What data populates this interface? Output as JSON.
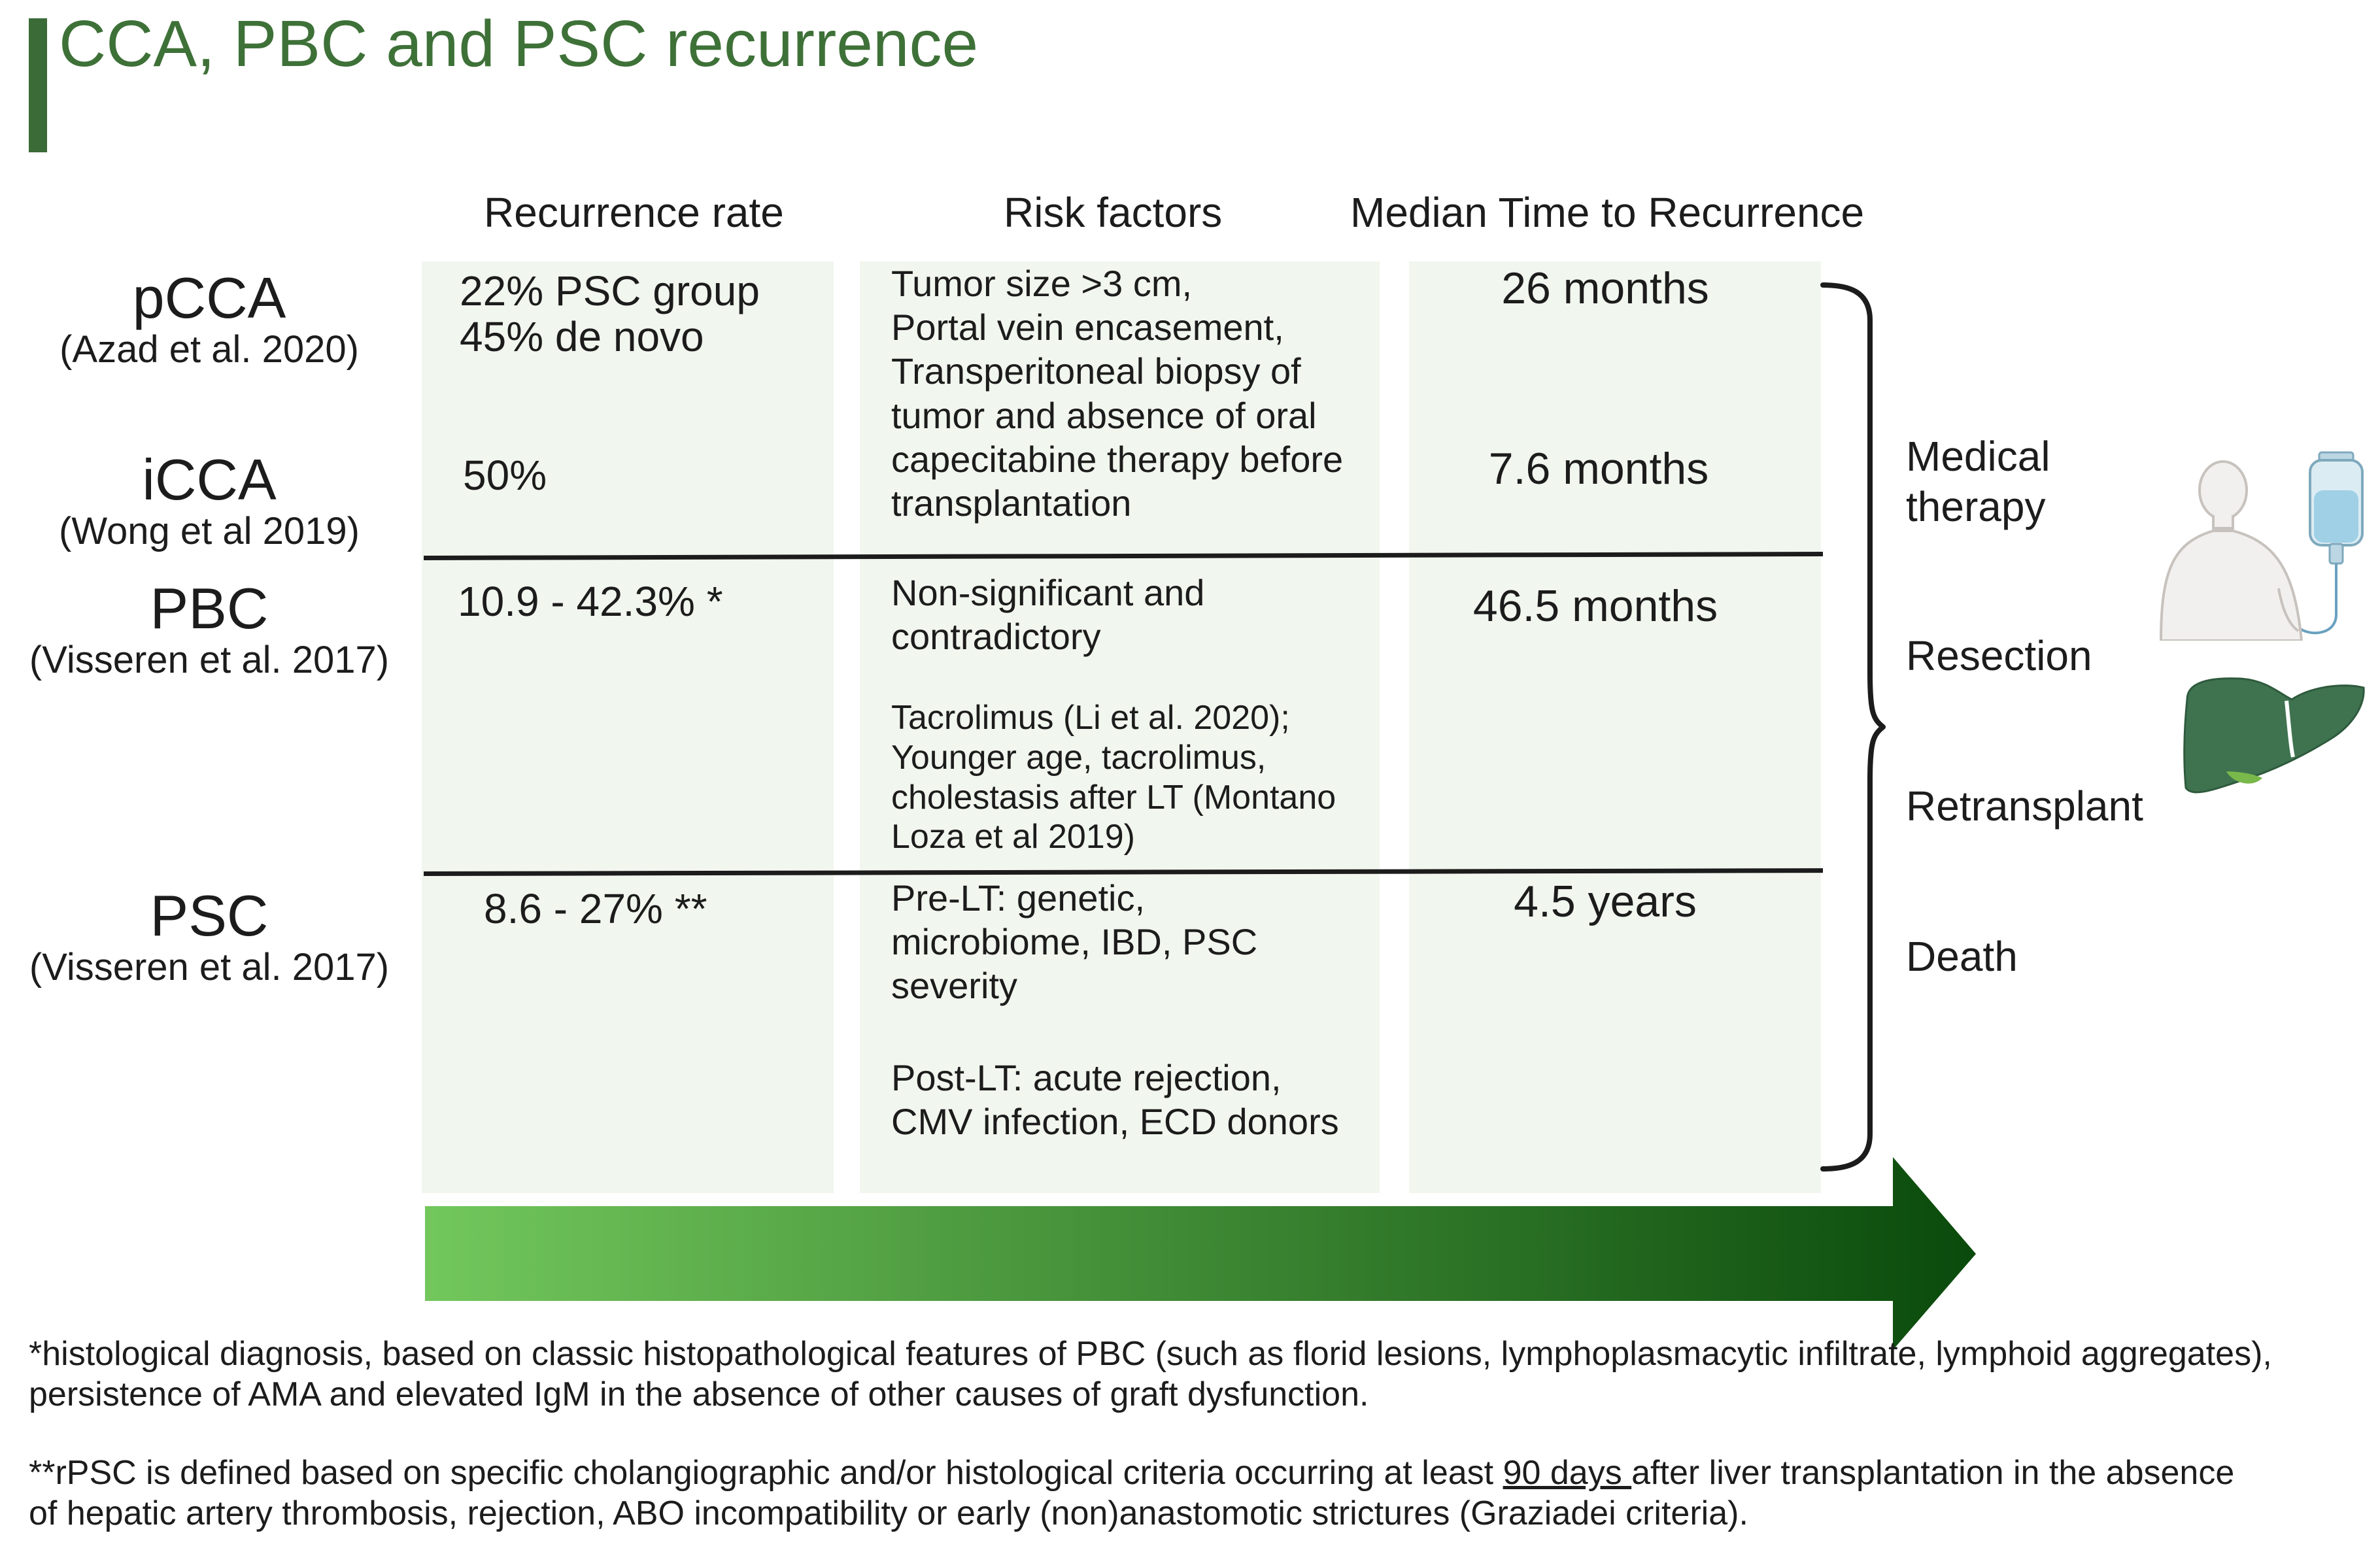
{
  "title": "CCA, PBC and PSC recurrence",
  "columns": {
    "recurrence_rate": "Recurrence rate",
    "risk_factors": "Risk factors",
    "median_time": "Median Time to Recurrence"
  },
  "rows": {
    "pcca": {
      "name": "pCCA",
      "ref": "(Azad et al. 2020)",
      "rate_line1": "22% PSC group",
      "rate_line2": "45% de novo",
      "median": "26 months"
    },
    "icca": {
      "name": "iCCA",
      "ref": "(Wong et al 2019)",
      "rate": "50%",
      "median": "7.6 months"
    },
    "cca_risk": [
      "Tumor size >3 cm,",
      "Portal vein encasement,",
      "Transperitoneal biopsy of",
      "tumor and absence of oral",
      "capecitabine therapy before",
      "transplantation"
    ],
    "pbc": {
      "name": "PBC",
      "ref": "(Visseren et al. 2017)",
      "rate": "10.9 - 42.3% *",
      "median": "46.5 months",
      "risk_a": [
        "Non-significant and",
        "contradictory"
      ],
      "risk_b": [
        "Tacrolimus (Li et al. 2020);",
        "Younger age, tacrolimus,",
        "cholestasis after LT (Montano",
        "Loza et al 2019)"
      ]
    },
    "psc": {
      "name": "PSC",
      "ref": "(Visseren et al. 2017)",
      "rate": "8.6 - 27% **",
      "median": "4.5 years",
      "risk_a": [
        "Pre-LT: genetic,",
        "microbiome, IBD, PSC",
        "severity"
      ],
      "risk_b": [
        "Post-LT: acute rejection,",
        "CMV infection, ECD donors"
      ]
    }
  },
  "outcomes": [
    "Medical",
    "therapy",
    "Resection",
    "Retransplant",
    "Death"
  ],
  "icons": [
    "patient-iv-drip-icon",
    "liver-icon"
  ],
  "colors": {
    "title": "#3e7138",
    "panel": "#f1f6ee",
    "arrow_start": "#72c75c",
    "arrow_end": "#0a4a0c"
  },
  "footnotes": {
    "note1_line1": "*histological diagnosis, based on classic histopathological features of PBC (such as florid lesions, lymphoplasmacytic infiltrate, lymphoid aggregates),",
    "note1_line2": "persistence of AMA and elevated IgM in the absence of other causes of graft dysfunction.",
    "note2_pre": "**rPSC is defined based on specific cholangiographic and/or histological criteria occurring at least ",
    "note2_underlined": "90 days ",
    "note2_post": "after liver transplantation in the absence",
    "note2_line2": "of hepatic artery thrombosis, rejection, ABO incompatibility or early (non)anastomotic strictures (Graziadei criteria)."
  }
}
